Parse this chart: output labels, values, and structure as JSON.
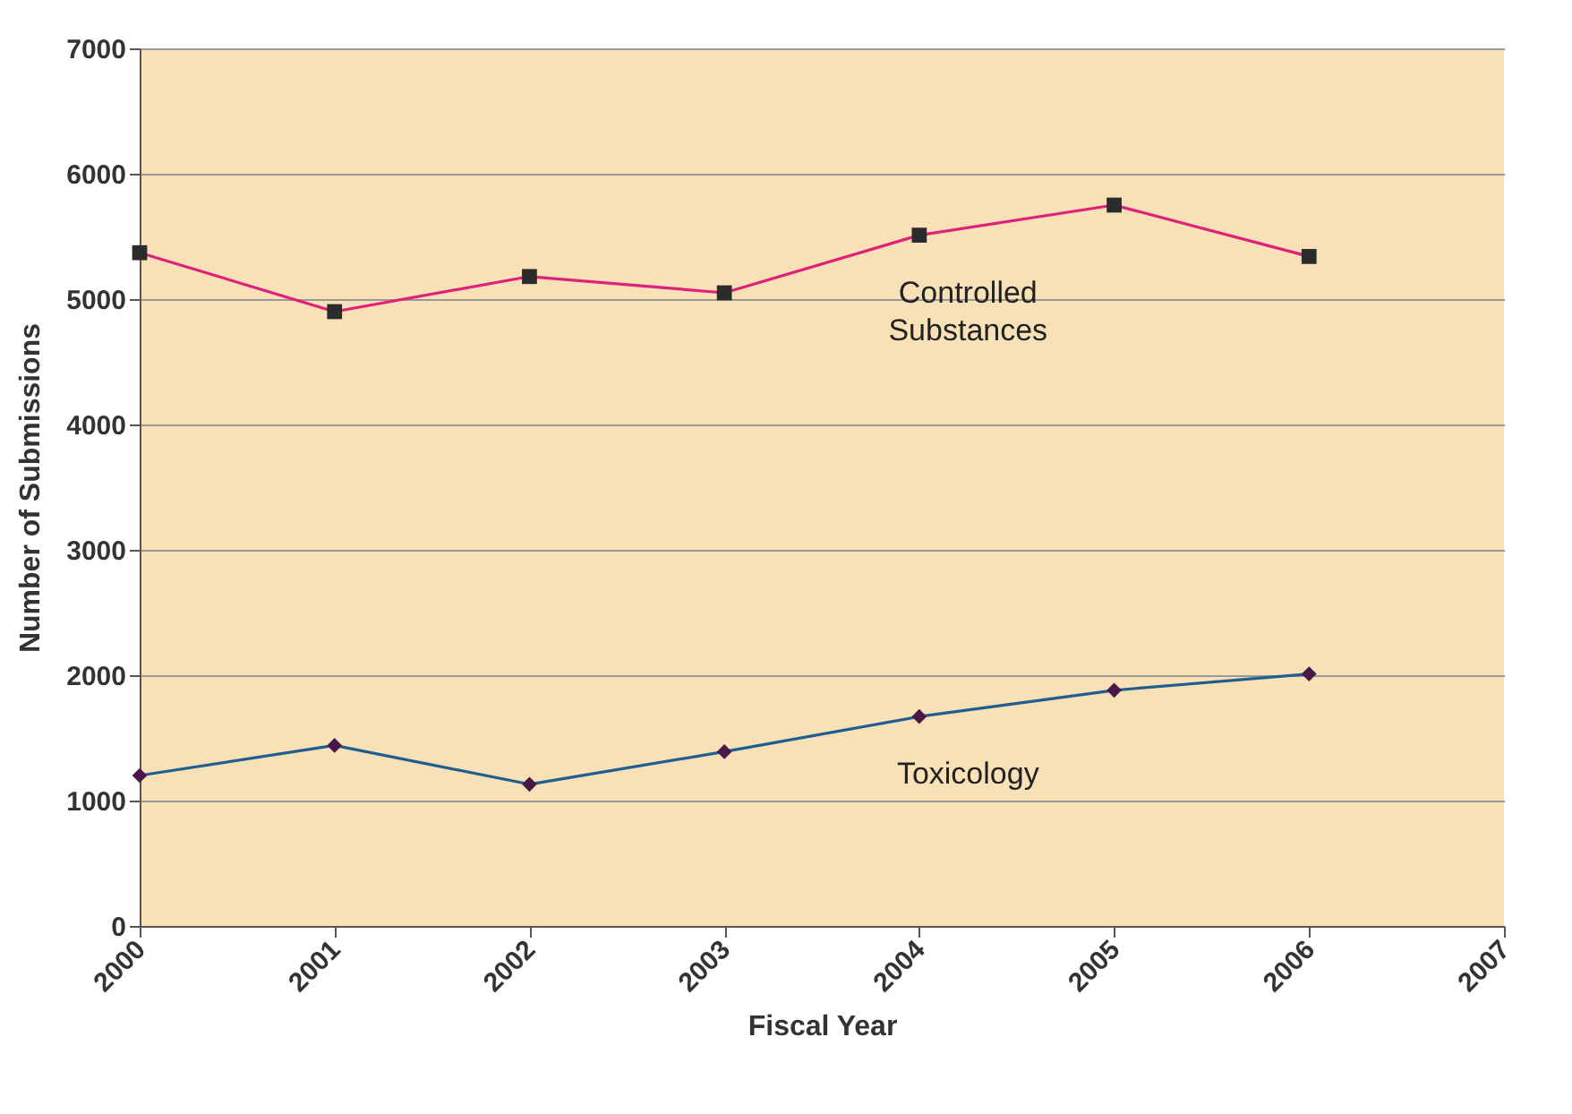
{
  "chart_data": {
    "type": "line",
    "xlabel": "Fiscal Year",
    "ylabel": "Number of Submissions",
    "x": [
      2000,
      2001,
      2002,
      2003,
      2004,
      2005,
      2006
    ],
    "xlim": [
      2000,
      2007
    ],
    "xticks": [
      2000,
      2001,
      2002,
      2003,
      2004,
      2005,
      2006,
      2007
    ],
    "ylim": [
      0,
      7000
    ],
    "yticks": [
      0,
      1000,
      2000,
      3000,
      4000,
      5000,
      6000,
      7000
    ],
    "grid": "y",
    "legend": false,
    "series": [
      {
        "name": "Controlled Substances",
        "color": "#e0207a",
        "marker": "square",
        "values": [
          5370,
          4900,
          5180,
          5050,
          5510,
          5750,
          5340
        ]
      },
      {
        "name": "Toxicology",
        "color": "#1f5f8f",
        "marker": "diamond",
        "values": [
          1200,
          1440,
          1130,
          1390,
          1670,
          1880,
          2010
        ]
      }
    ]
  }
}
